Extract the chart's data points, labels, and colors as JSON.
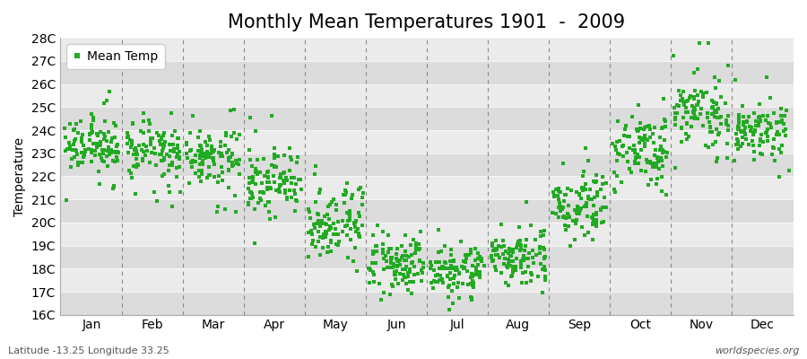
{
  "title": "Monthly Mean Temperatures 1901  -  2009",
  "ylabel": "Temperature",
  "xlabel_bottom": "Latitude -13.25 Longitude 33.25",
  "watermark": "worldspecies.org",
  "ylim": [
    16,
    28
  ],
  "ytick_labels": [
    "16C",
    "17C",
    "18C",
    "19C",
    "20C",
    "21C",
    "22C",
    "23C",
    "24C",
    "25C",
    "26C",
    "27C",
    "28C"
  ],
  "ytick_values": [
    16,
    17,
    18,
    19,
    20,
    21,
    22,
    23,
    24,
    25,
    26,
    27,
    28
  ],
  "months": [
    "Jan",
    "Feb",
    "Mar",
    "Apr",
    "May",
    "Jun",
    "Jul",
    "Aug",
    "Sep",
    "Oct",
    "Nov",
    "Dec"
  ],
  "dot_color": "#22aa22",
  "dot_size": 5,
  "background_color": "#e8e8e8",
  "band_light": "#ebebeb",
  "band_dark": "#dcdcdc",
  "dashed_line_color": "#888888",
  "legend_label": "Mean Temp",
  "title_fontsize": 15,
  "axis_fontsize": 10,
  "monthly_mean_temps": [
    23.3,
    23.2,
    22.8,
    21.8,
    20.0,
    18.2,
    17.8,
    18.5,
    20.8,
    23.2,
    24.7,
    24.0
  ],
  "monthly_std_temps": [
    0.55,
    0.55,
    0.6,
    0.65,
    0.75,
    0.55,
    0.55,
    0.55,
    0.65,
    0.7,
    0.65,
    0.55
  ],
  "monthly_extra_spread": [
    0.8,
    0.8,
    0.9,
    0.8,
    0.8,
    0.5,
    0.5,
    0.5,
    0.8,
    0.9,
    0.9,
    0.8
  ],
  "n_years": 109
}
